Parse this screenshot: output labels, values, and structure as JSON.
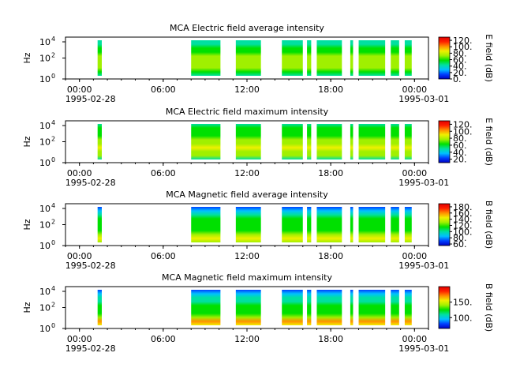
{
  "chart_data": [
    {
      "type": "heatmap",
      "title": "MCA  Electric field average intensity",
      "ylabel": "Hz",
      "colorbar_label": "E field (dB)",
      "colorbar_ticks": [
        "120.",
        "100.",
        "80.",
        "60.",
        "40.",
        "20.",
        "0."
      ],
      "colorbar_range": [
        0,
        130
      ],
      "y_ticks": [
        "10",
        "10",
        "10"
      ],
      "y_tick_exponents": [
        "0",
        "2",
        "4"
      ],
      "x_ticks": [
        "00:00",
        "06:00",
        "12:00",
        "18:00",
        "00:00"
      ],
      "x_sublabels": [
        "1995-02-28",
        "1995-03-01"
      ],
      "colormap": [
        "#0000c0",
        "#0040ff",
        "#00c0ff",
        "#00e0a0",
        "#00e000",
        "#a0f000",
        "#f0f000",
        "#ff9000",
        "#ff2000",
        "#e00000"
      ],
      "data_columns_hours": [
        [
          1.3,
          1.6
        ],
        [
          8.0,
          10.1
        ],
        [
          11.2,
          13.0
        ],
        [
          14.5,
          16.0
        ],
        [
          16.3,
          16.6
        ],
        [
          17.0,
          18.8
        ],
        [
          19.4,
          19.6
        ],
        [
          20.0,
          21.9
        ],
        [
          22.3,
          22.9
        ],
        [
          23.3,
          23.8
        ]
      ],
      "level_profile_db": [
        45,
        60,
        70,
        75,
        72,
        65,
        58,
        52,
        50,
        48
      ]
    },
    {
      "type": "heatmap",
      "title": "MCA  Electric field maximum intensity",
      "ylabel": "Hz",
      "colorbar_label": "E field (dB)",
      "colorbar_ticks": [
        "120.",
        "100.",
        "80.",
        "60.",
        "40.",
        "20."
      ],
      "colorbar_range": [
        10,
        130
      ],
      "y_ticks": [
        "10",
        "10",
        "10"
      ],
      "y_tick_exponents": [
        "0",
        "2",
        "4"
      ],
      "x_ticks": [
        "00:00",
        "06:00",
        "12:00",
        "18:00",
        "00:00"
      ],
      "x_sublabels": [
        "1995-02-28",
        "1995-03-01"
      ],
      "colormap": [
        "#0000c0",
        "#0040ff",
        "#00c0ff",
        "#00e0a0",
        "#00e000",
        "#a0f000",
        "#f0f000",
        "#ff9000",
        "#ff2000",
        "#e00000"
      ],
      "data_columns_hours": [
        [
          1.3,
          1.6
        ],
        [
          8.0,
          10.1
        ],
        [
          11.2,
          13.0
        ],
        [
          14.5,
          16.0
        ],
        [
          16.3,
          16.6
        ],
        [
          17.0,
          18.8
        ],
        [
          19.4,
          19.6
        ],
        [
          20.0,
          21.9
        ],
        [
          22.3,
          22.9
        ],
        [
          23.3,
          23.8
        ]
      ],
      "level_profile_db": [
        55,
        70,
        80,
        85,
        82,
        75,
        68,
        62,
        58,
        55
      ]
    },
    {
      "type": "heatmap",
      "title": "MCA  Magnetic field average intensity",
      "ylabel": "Hz",
      "colorbar_label": "B field (dB)",
      "colorbar_ticks": [
        "180.",
        "160.",
        "140.",
        "120.",
        "100.",
        "80.",
        "60."
      ],
      "colorbar_range": [
        55,
        190
      ],
      "y_ticks": [
        "10",
        "10",
        "10"
      ],
      "y_tick_exponents": [
        "0",
        "2",
        "4"
      ],
      "x_ticks": [
        "00:00",
        "06:00",
        "12:00",
        "18:00",
        "00:00"
      ],
      "x_sublabels": [
        "1995-02-28",
        "1995-03-01"
      ],
      "colormap": [
        "#0000c0",
        "#0040ff",
        "#00c0ff",
        "#00e0a0",
        "#00e000",
        "#a0f000",
        "#f0f000",
        "#ff9000",
        "#ff2000",
        "#e00000"
      ],
      "data_columns_hours": [
        [
          1.3,
          1.6
        ],
        [
          8.0,
          10.1
        ],
        [
          11.2,
          13.0
        ],
        [
          14.5,
          16.0
        ],
        [
          16.3,
          16.6
        ],
        [
          17.0,
          18.8
        ],
        [
          19.4,
          19.6
        ],
        [
          20.0,
          21.9
        ],
        [
          22.3,
          22.9
        ],
        [
          23.3,
          23.8
        ]
      ],
      "level_profile_db": [
        130,
        150,
        125,
        118,
        115,
        110,
        108,
        100,
        80,
        70
      ]
    },
    {
      "type": "heatmap",
      "title": "MCA  Magnetic field maximum intensity",
      "ylabel": "Hz",
      "colorbar_label": "B field (dB)",
      "colorbar_ticks": [
        "150.",
        "100."
      ],
      "colorbar_range": [
        65,
        200
      ],
      "y_ticks": [
        "10",
        "10",
        "10"
      ],
      "y_tick_exponents": [
        "0",
        "2",
        "4"
      ],
      "x_ticks": [
        "00:00",
        "06:00",
        "12:00",
        "18:00",
        "00:00"
      ],
      "x_sublabels": [
        "1995-02-28",
        "1995-03-01"
      ],
      "colormap": [
        "#0000c0",
        "#0040ff",
        "#00c0ff",
        "#00e0a0",
        "#00e000",
        "#a0f000",
        "#f0f000",
        "#ff9000",
        "#ff2000",
        "#e00000"
      ],
      "data_columns_hours": [
        [
          1.3,
          1.6
        ],
        [
          8.0,
          10.1
        ],
        [
          11.2,
          13.0
        ],
        [
          14.5,
          16.0
        ],
        [
          16.3,
          16.6
        ],
        [
          17.0,
          18.8
        ],
        [
          19.4,
          19.6
        ],
        [
          20.0,
          21.9
        ],
        [
          22.3,
          22.9
        ],
        [
          23.3,
          23.8
        ]
      ],
      "level_profile_db": [
        150,
        165,
        135,
        125,
        122,
        118,
        115,
        110,
        90,
        80
      ]
    }
  ]
}
